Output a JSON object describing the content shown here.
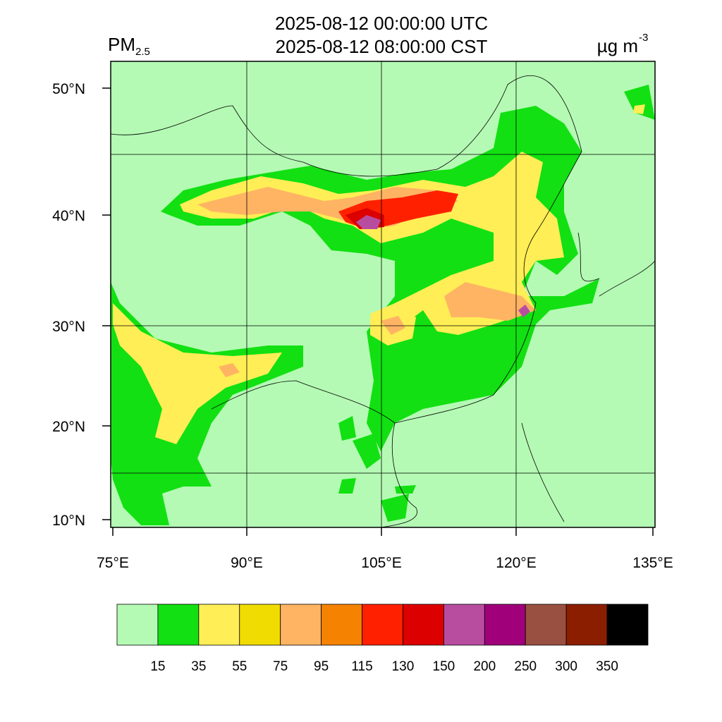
{
  "header": {
    "variable": "PM",
    "variable_sub": "2.5",
    "title_utc": "2025-08-12 00:00:00 UTC",
    "title_cst": "2025-08-12 08:00:00 CST",
    "units": "µg m",
    "units_sup": "-3"
  },
  "map": {
    "lat_labels": [
      "50°N",
      "40°N",
      "30°N",
      "20°N",
      "10°N"
    ],
    "lon_labels": [
      "75°E",
      "90°E",
      "105°E",
      "120°E",
      "135°E"
    ]
  },
  "colorbar": {
    "colors": [
      "#b4fab4",
      "#12e012",
      "#ffee55",
      "#f0dc00",
      "#ffb464",
      "#f58200",
      "#ff2000",
      "#dc0000",
      "#b84da0",
      "#a0007a",
      "#9a5040",
      "#8c1e00",
      "#000000"
    ],
    "labels": [
      "15",
      "35",
      "55",
      "75",
      "95",
      "115",
      "130",
      "150",
      "200",
      "250",
      "300",
      "350"
    ]
  }
}
